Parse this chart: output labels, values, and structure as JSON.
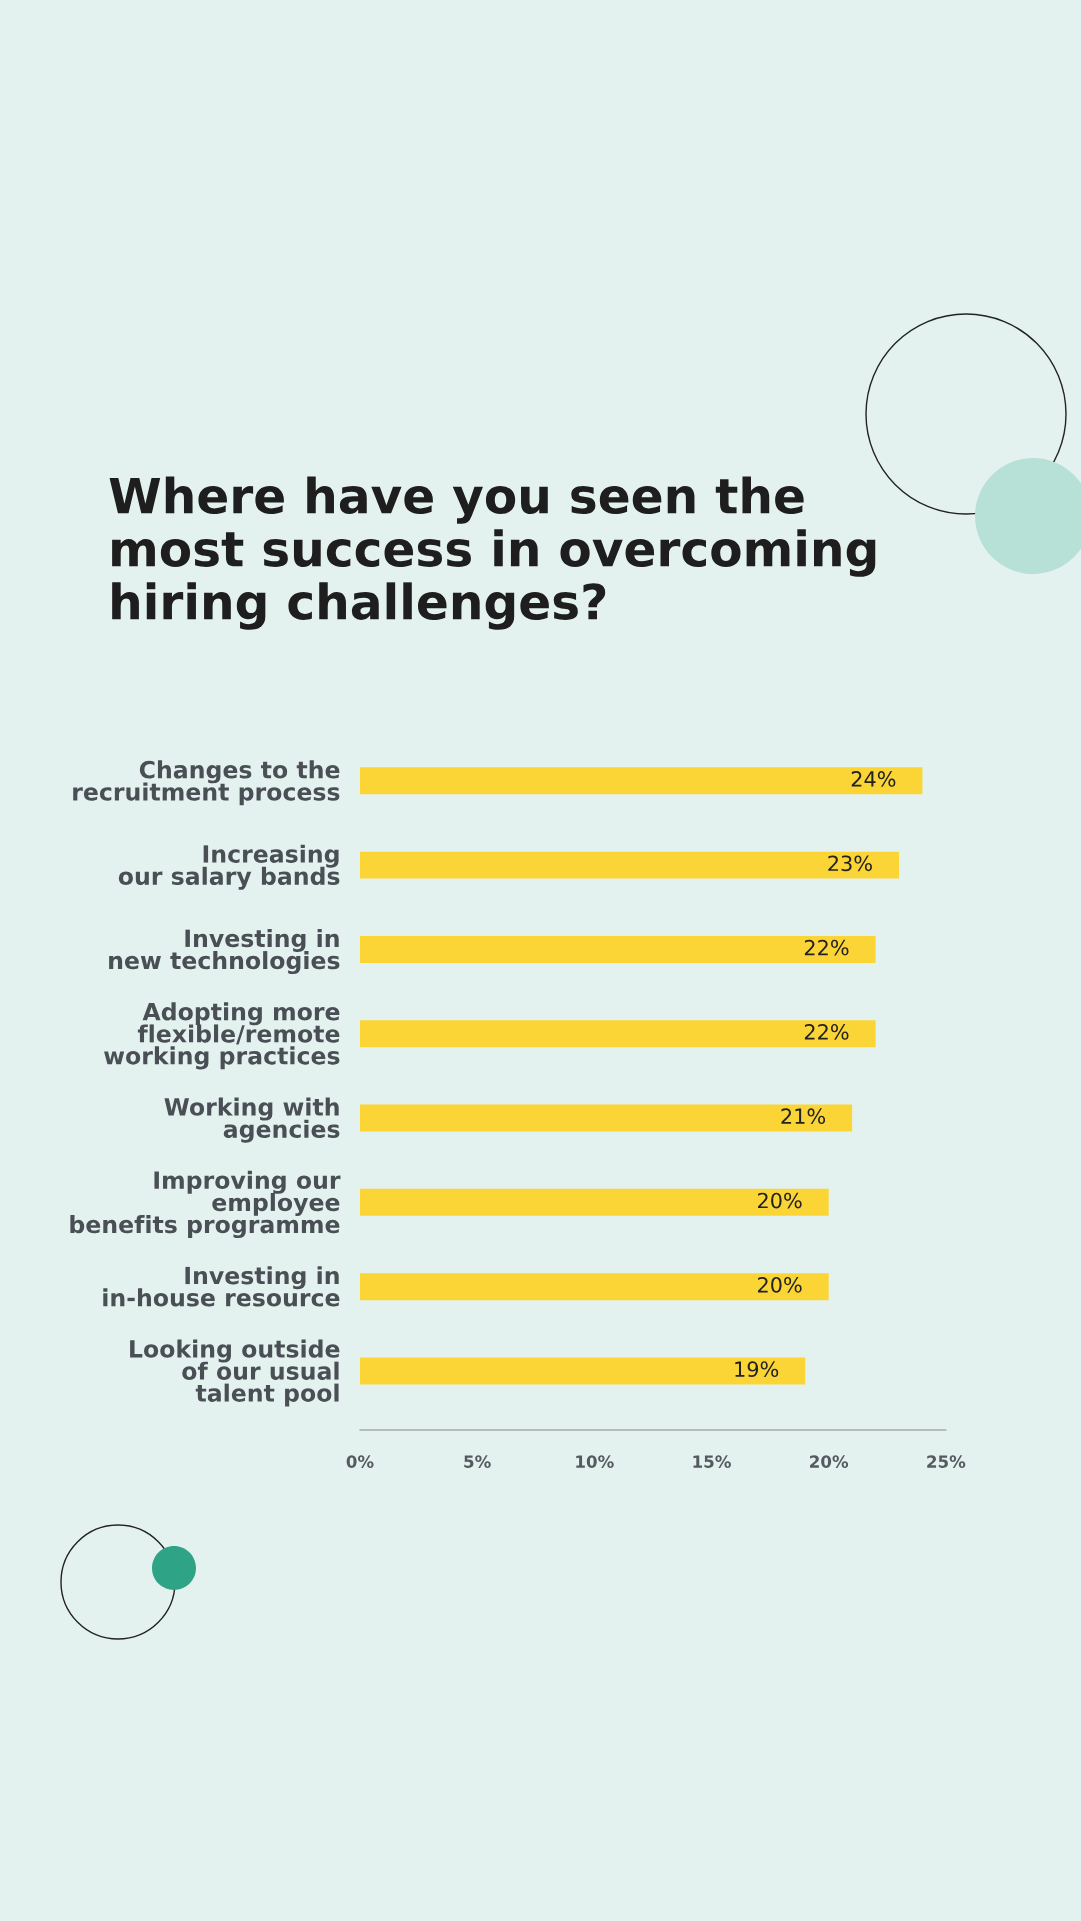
{
  "chart_data": {
    "type": "bar",
    "orientation": "horizontal",
    "title": "Where have you seen the\nmost success in overcoming\nhiring challenges?",
    "categories": [
      "Changes to the\nrecruitment process",
      "Increasing\nour salary bands",
      "Investing in\nnew technologies",
      "Adopting more\nflexible/remote\nworking practices",
      "Working with\nagencies",
      "Improving our\nemployee\nbenefits programme",
      "Investing in\nin-house resource",
      "Looking outside\nof our usual\ntalent pool"
    ],
    "values": [
      24,
      23,
      22,
      22,
      21,
      20,
      20,
      19
    ],
    "color": "#fbd535",
    "value_labels": [
      "24%",
      "23%",
      "22%",
      "22%",
      "21%",
      "20%",
      "20%",
      "19%"
    ],
    "xlim": [
      0,
      25
    ],
    "xticks": [
      {
        "value": 0,
        "label": "0%"
      },
      {
        "value": 5,
        "label": "5%"
      },
      {
        "value": 10,
        "label": "10%"
      },
      {
        "value": 15,
        "label": "15%"
      },
      {
        "value": 20,
        "label": "20%"
      },
      {
        "value": 25,
        "label": "25%"
      }
    ],
    "grid": false,
    "legend": false
  }
}
